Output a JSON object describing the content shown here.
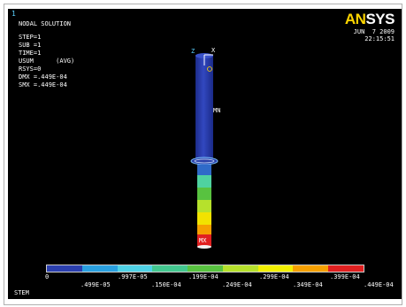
{
  "window": {
    "number": "1"
  },
  "header": {
    "title": "NODAL SOLUTION",
    "lines": [
      "STEP=1",
      "SUB =1",
      "TIME=1",
      "USUM      (AVG)",
      "RSYS=0",
      "DMX =.449E-04",
      "SMX =.449E-04"
    ]
  },
  "brand": {
    "logo_a": "AN",
    "logo_b": "SYS"
  },
  "date": {
    "day": "JUN  7 2009",
    "time": "22:15:51"
  },
  "triad": {
    "z": "Z",
    "x": "X"
  },
  "labels": {
    "mn": "MN",
    "mx": "MX"
  },
  "legend": {
    "colors": [
      "#2b3fae",
      "#2aa0e0",
      "#4fd2e6",
      "#43c78f",
      "#58c240",
      "#b6e12c",
      "#f2f000",
      "#f5a000",
      "#e02020"
    ],
    "top_ticks": [
      "0",
      ".997E-05",
      ".199E-04",
      ".299E-04",
      ".399E-04"
    ],
    "bottom_ticks": [
      ".499E-05",
      ".150E-04",
      ".249E-04",
      ".349E-04",
      ".449E-04"
    ]
  },
  "footer": {
    "label": "STEM"
  }
}
